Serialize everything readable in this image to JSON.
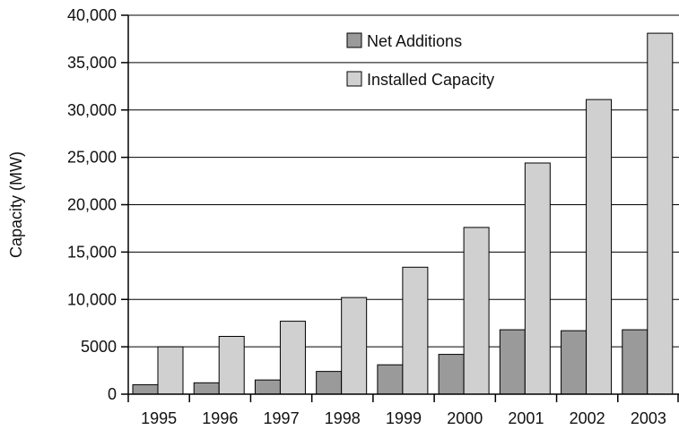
{
  "chart_data": {
    "type": "bar",
    "title": "",
    "xlabel": "",
    "ylabel": "Capacity (MW)",
    "ylim": [
      0,
      40000
    ],
    "yticks": [
      0,
      5000,
      10000,
      15000,
      20000,
      25000,
      30000,
      35000,
      40000
    ],
    "ytick_labels": [
      "0",
      "5000",
      "10,000",
      "15,000",
      "20,000",
      "25,000",
      "30,000",
      "35,000",
      "40,000"
    ],
    "categories": [
      "1995",
      "1996",
      "1997",
      "1998",
      "1999",
      "2000",
      "2001",
      "2002",
      "2003"
    ],
    "series": [
      {
        "name": "Net Additions",
        "color": "#9a9a9a",
        "values": [
          1000,
          1200,
          1500,
          2400,
          3100,
          4200,
          6800,
          6700,
          6800
        ]
      },
      {
        "name": "Installed Capacity",
        "color": "#d0d0d0",
        "values": [
          5000,
          6100,
          7700,
          10200,
          13400,
          17600,
          24400,
          31100,
          38100
        ]
      }
    ],
    "legend_position": "top-center",
    "grid": "horizontal"
  }
}
